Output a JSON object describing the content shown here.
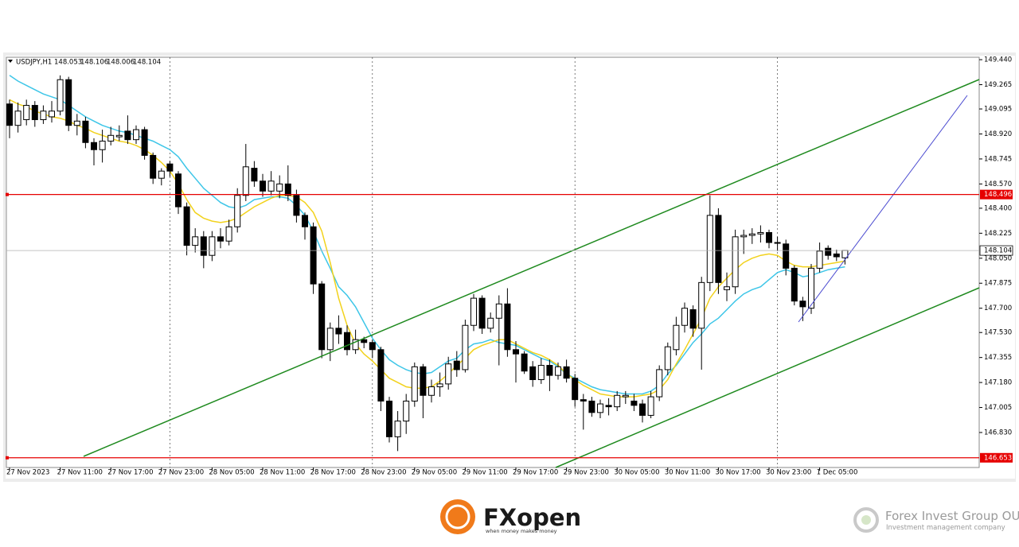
{
  "chart_data": {
    "type": "candlestick",
    "symbol": "USDJPY,H1",
    "up_color": "#ffffff",
    "down_color": "#000000",
    "ylim": [
      146.585,
      149.457
    ],
    "yticks": [
      {
        "value": 149.44,
        "label": "149.440"
      },
      149.265,
      149.095,
      {
        "value": 148.92,
        "label": "148.920"
      },
      148.745,
      {
        "value": 148.57,
        "label": "148.570"
      },
      {
        "value": 148.4,
        "label": "148.400"
      },
      148.225,
      {
        "value": 148.05,
        "label": "148.050"
      },
      147.875,
      {
        "value": 147.7,
        "label": "147.700"
      },
      {
        "value": 147.53,
        "label": "147.530"
      },
      147.355,
      {
        "value": 147.18,
        "label": "147.180"
      },
      147.005,
      {
        "value": 146.83,
        "label": "146.830"
      }
    ],
    "levels": [
      {
        "value": 148.496,
        "color": "#e60000"
      },
      {
        "value": 146.653,
        "color": "#e60000"
      }
    ],
    "categories": [
      "27 Nov 2023",
      null,
      null,
      null,
      null,
      null,
      "27 Nov 11:00",
      null,
      null,
      null,
      null,
      null,
      "27 Nov 17:00",
      null,
      null,
      null,
      null,
      null,
      "27 Nov 23:00",
      null,
      null,
      null,
      null,
      null,
      "28 Nov 05:00",
      null,
      null,
      null,
      null,
      null,
      "28 Nov 11:00",
      null,
      null,
      null,
      null,
      null,
      "28 Nov 17:00",
      null,
      null,
      null,
      null,
      null,
      "28 Nov 23:00",
      null,
      null,
      null,
      null,
      null,
      "29 Nov 05:00",
      null,
      null,
      null,
      null,
      null,
      "29 Nov 11:00",
      null,
      null,
      null,
      null,
      null,
      "29 Nov 17:00",
      null,
      null,
      null,
      null,
      null,
      "29 Nov 23:00",
      null,
      null,
      null,
      null,
      null,
      "30 Nov 05:00",
      null,
      null,
      null,
      null,
      null,
      "30 Nov 11:00",
      null,
      null,
      null,
      null,
      null,
      "30 Nov 17:00",
      null,
      null,
      null,
      null,
      null,
      "30 Nov 23:00",
      null,
      null,
      null,
      null,
      null,
      "1 Dec 05:00",
      null,
      null,
      null
    ],
    "candles": [
      [
        149.13,
        149.16,
        148.89,
        148.98
      ],
      [
        148.98,
        149.14,
        148.93,
        149.08
      ],
      [
        149.02,
        149.16,
        148.98,
        149.12
      ],
      [
        149.12,
        149.15,
        148.97,
        149.02
      ],
      [
        149.02,
        149.12,
        148.99,
        149.08
      ],
      [
        149.04,
        149.15,
        149.0,
        149.08
      ],
      [
        149.08,
        149.33,
        149.05,
        149.3
      ],
      [
        149.3,
        149.32,
        148.94,
        148.98
      ],
      [
        148.98,
        149.06,
        148.91,
        149.01
      ],
      [
        149.01,
        149.04,
        148.82,
        148.86
      ],
      [
        148.86,
        148.89,
        148.7,
        148.81
      ],
      [
        148.81,
        148.95,
        148.72,
        148.87
      ],
      [
        148.87,
        148.97,
        148.84,
        148.91
      ],
      [
        148.9,
        148.98,
        148.87,
        148.91
      ],
      [
        148.94,
        149.05,
        148.85,
        148.88
      ],
      [
        148.88,
        148.98,
        148.85,
        148.95
      ],
      [
        148.95,
        148.97,
        148.74,
        148.77
      ],
      [
        148.77,
        148.79,
        148.57,
        148.61
      ],
      [
        148.61,
        148.68,
        148.56,
        148.66
      ],
      [
        148.71,
        148.73,
        148.62,
        148.66
      ],
      [
        148.64,
        148.66,
        148.36,
        148.41
      ],
      [
        148.41,
        148.44,
        148.07,
        148.14
      ],
      [
        148.14,
        148.26,
        148.09,
        148.2
      ],
      [
        148.2,
        148.24,
        147.98,
        148.07
      ],
      [
        148.07,
        148.24,
        148.03,
        148.2
      ],
      [
        148.2,
        148.26,
        148.12,
        148.17
      ],
      [
        148.17,
        148.32,
        148.14,
        148.27
      ],
      [
        148.27,
        148.54,
        148.23,
        148.49
      ],
      [
        148.49,
        148.85,
        148.45,
        148.69
      ],
      [
        148.68,
        148.73,
        148.55,
        148.59
      ],
      [
        148.59,
        148.64,
        148.48,
        148.52
      ],
      [
        148.52,
        148.66,
        148.49,
        148.59
      ],
      [
        148.52,
        148.63,
        148.47,
        148.57
      ],
      [
        148.57,
        148.7,
        148.45,
        148.49
      ],
      [
        148.49,
        148.53,
        148.3,
        148.35
      ],
      [
        148.35,
        148.37,
        148.18,
        148.27
      ],
      [
        148.27,
        148.3,
        147.8,
        147.87
      ],
      [
        147.87,
        147.89,
        147.35,
        147.41
      ],
      [
        147.41,
        147.6,
        147.33,
        147.56
      ],
      [
        147.56,
        147.65,
        147.45,
        147.52
      ],
      [
        147.53,
        147.58,
        147.37,
        147.41
      ],
      [
        147.41,
        147.55,
        147.38,
        147.48
      ],
      [
        147.48,
        147.5,
        147.42,
        147.46
      ],
      [
        147.46,
        147.48,
        147.35,
        147.41
      ],
      [
        147.41,
        147.43,
        146.98,
        147.05
      ],
      [
        147.05,
        147.08,
        146.76,
        146.8
      ],
      [
        146.8,
        146.98,
        146.7,
        146.91
      ],
      [
        146.91,
        147.1,
        146.82,
        147.05
      ],
      [
        147.05,
        147.32,
        147.01,
        147.29
      ],
      [
        147.29,
        147.31,
        146.93,
        147.09
      ],
      [
        147.09,
        147.2,
        147.04,
        147.15
      ],
      [
        147.15,
        147.25,
        147.08,
        147.17
      ],
      [
        147.17,
        147.36,
        147.13,
        147.31
      ],
      [
        147.33,
        147.4,
        147.22,
        147.27
      ],
      [
        147.27,
        147.62,
        147.25,
        147.58
      ],
      [
        147.58,
        147.8,
        147.54,
        147.77
      ],
      [
        147.77,
        147.79,
        147.52,
        147.56
      ],
      [
        147.56,
        147.67,
        147.53,
        147.63
      ],
      [
        147.63,
        147.79,
        147.3,
        147.73
      ],
      [
        147.73,
        147.84,
        147.36,
        147.41
      ],
      [
        147.41,
        147.47,
        147.18,
        147.38
      ],
      [
        147.38,
        147.4,
        147.24,
        147.26
      ],
      [
        147.29,
        147.33,
        147.15,
        147.2
      ],
      [
        147.2,
        147.35,
        147.17,
        147.3
      ],
      [
        147.3,
        147.34,
        147.12,
        147.23
      ],
      [
        147.23,
        147.32,
        147.2,
        147.29
      ],
      [
        147.29,
        147.34,
        147.18,
        147.21
      ],
      [
        147.21,
        147.24,
        147.01,
        147.06
      ],
      [
        147.06,
        147.1,
        146.85,
        147.05
      ],
      [
        147.05,
        147.08,
        146.94,
        146.97
      ],
      [
        146.97,
        147.06,
        146.93,
        147.03
      ],
      [
        147.02,
        147.07,
        146.95,
        147.01
      ],
      [
        147.01,
        147.12,
        146.98,
        147.09
      ],
      [
        147.08,
        147.12,
        147.03,
        147.09
      ],
      [
        147.05,
        147.1,
        146.98,
        147.02
      ],
      [
        147.03,
        147.06,
        146.9,
        146.95
      ],
      [
        146.95,
        147.12,
        146.93,
        147.08
      ],
      [
        147.08,
        147.3,
        147.05,
        147.27
      ],
      [
        147.27,
        147.46,
        147.23,
        147.43
      ],
      [
        147.41,
        147.64,
        147.37,
        147.58
      ],
      [
        147.58,
        147.74,
        147.53,
        147.7
      ],
      [
        147.69,
        147.72,
        147.5,
        147.56
      ],
      [
        147.56,
        147.92,
        147.27,
        147.88
      ],
      [
        147.88,
        148.49,
        147.82,
        148.35
      ],
      [
        148.35,
        148.4,
        147.8,
        147.88
      ],
      [
        147.83,
        147.95,
        147.75,
        147.85
      ],
      [
        147.85,
        148.25,
        147.8,
        148.2
      ],
      [
        148.2,
        148.25,
        148.08,
        148.21
      ],
      [
        148.21,
        148.26,
        148.15,
        148.22
      ],
      [
        148.22,
        148.28,
        148.16,
        148.23
      ],
      [
        148.23,
        148.25,
        148.12,
        148.16
      ],
      [
        148.16,
        148.2,
        148.1,
        148.16
      ],
      [
        148.15,
        148.18,
        147.93,
        147.98
      ],
      [
        147.98,
        148.0,
        147.72,
        147.75
      ],
      [
        147.75,
        147.78,
        147.61,
        147.71
      ],
      [
        147.7,
        148.01,
        147.66,
        147.98
      ],
      [
        147.98,
        148.16,
        147.95,
        148.1
      ],
      [
        148.12,
        148.14,
        148.04,
        148.07
      ],
      [
        148.08,
        148.11,
        148.03,
        148.06
      ],
      [
        148.053,
        148.106,
        148.006,
        148.104
      ]
    ],
    "series": [
      {
        "color": "#3ec6e8",
        "values": [
          149.33,
          149.29,
          149.26,
          149.23,
          149.2,
          149.18,
          149.16,
          149.12,
          149.08,
          149.04,
          149.01,
          148.98,
          148.96,
          148.94,
          148.93,
          148.91,
          148.89,
          148.87,
          148.84,
          148.81,
          148.76,
          148.68,
          148.61,
          148.54,
          148.49,
          148.44,
          148.41,
          148.4,
          148.42,
          148.46,
          148.47,
          148.48,
          148.48,
          148.47,
          148.42,
          148.35,
          148.24,
          148.1,
          147.98,
          147.85,
          147.79,
          147.71,
          147.6,
          147.49,
          147.41,
          147.34,
          147.3,
          147.27,
          147.25,
          147.24,
          147.25,
          147.29,
          147.33,
          147.35,
          147.41,
          147.45,
          147.46,
          147.48,
          147.46,
          147.45,
          147.44,
          147.41,
          147.38,
          147.35,
          147.33,
          147.29,
          147.24,
          147.21,
          147.18,
          147.15,
          147.13,
          147.12,
          147.11,
          147.1,
          147.1,
          147.1,
          147.12,
          147.16,
          147.24,
          147.3,
          147.38,
          147.46,
          147.52,
          147.59,
          147.63,
          147.69,
          147.75,
          147.8,
          147.83,
          147.85,
          147.9,
          147.95,
          147.97,
          147.95,
          147.92,
          147.93,
          147.95,
          147.97,
          147.98,
          147.99
        ]
      },
      {
        "color": "#f2d21c",
        "values": [
          149.16,
          149.13,
          149.11,
          149.08,
          149.06,
          149.04,
          149.03,
          149.01,
          148.98,
          148.96,
          148.93,
          148.91,
          148.89,
          148.87,
          148.86,
          148.84,
          148.81,
          148.77,
          148.72,
          148.66,
          148.57,
          148.46,
          148.37,
          148.33,
          148.31,
          148.3,
          148.31,
          148.33,
          148.37,
          148.41,
          148.44,
          148.47,
          148.49,
          148.49,
          148.48,
          148.44,
          148.37,
          148.24,
          148.02,
          147.77,
          147.58,
          147.45,
          147.38,
          147.33,
          147.27,
          147.21,
          147.18,
          147.15,
          147.14,
          147.14,
          147.15,
          147.19,
          147.24,
          147.3,
          147.35,
          147.41,
          147.44,
          147.46,
          147.48,
          147.48,
          147.45,
          147.42,
          147.39,
          147.37,
          147.34,
          147.3,
          147.24,
          147.2,
          147.16,
          147.13,
          147.1,
          147.09,
          147.08,
          147.08,
          147.08,
          147.09,
          147.1,
          147.13,
          147.2,
          147.31,
          147.41,
          147.52,
          147.63,
          147.77,
          147.85,
          147.91,
          147.97,
          148.02,
          148.05,
          148.07,
          148.08,
          148.07,
          148.03,
          148.0,
          147.99,
          147.99,
          148.0,
          148.01,
          148.02,
          148.03
        ]
      }
    ]
  },
  "footer": {
    "brand": "FXopen",
    "brand_tagline": "when money makes money",
    "partner": "Forex Invest Group OU",
    "partner_tagline": "Investment management company"
  }
}
